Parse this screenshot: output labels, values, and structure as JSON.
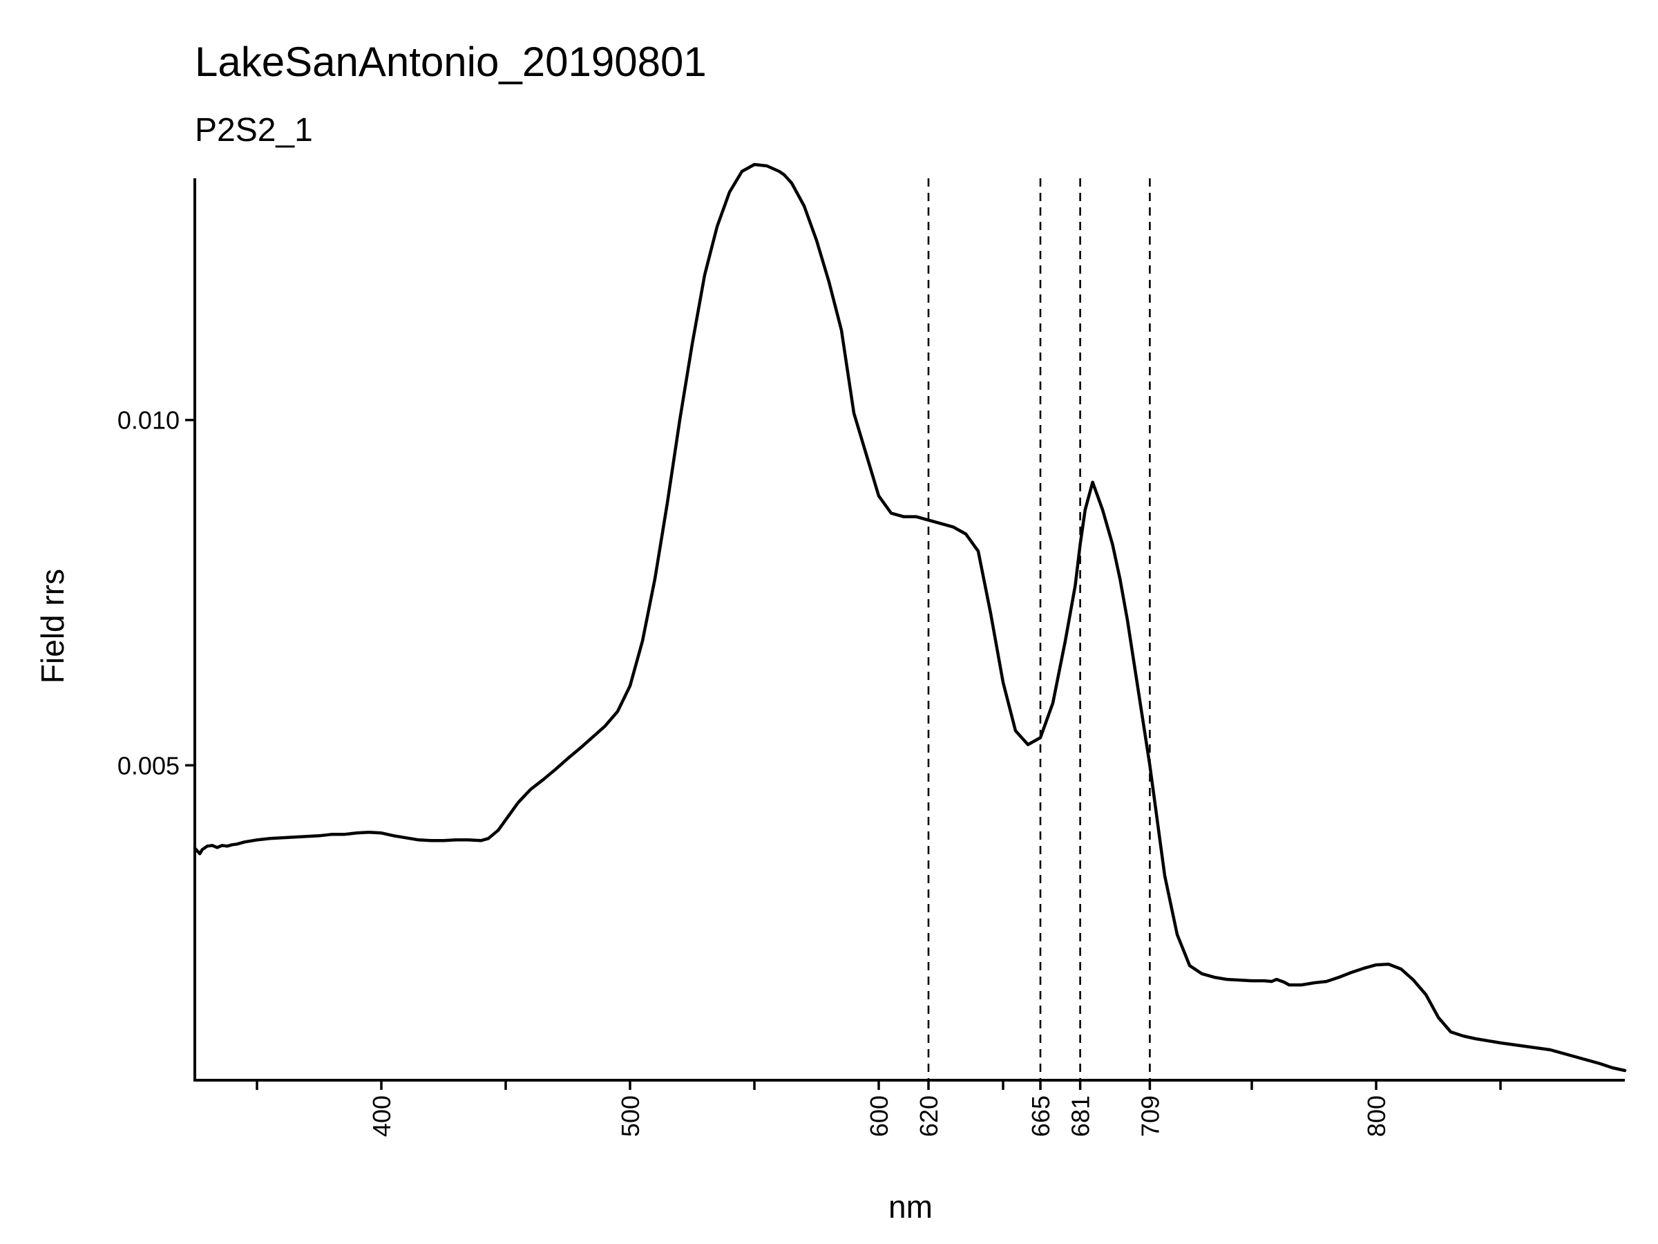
{
  "chart_data": {
    "type": "line",
    "title": "LakeSanAntonio_20190801",
    "subtitle": "P2S2_1",
    "xlabel": "nm",
    "ylabel": "Field rrs",
    "xlim": [
      325,
      900
    ],
    "ylim": [
      0.00044,
      0.0135
    ],
    "x_ticks": [
      400,
      500,
      600,
      620,
      665,
      681,
      709,
      800
    ],
    "x_minor_ticks": [
      350,
      450,
      550,
      650,
      750,
      850
    ],
    "y_ticks": [
      {
        "value": 0.005,
        "label": "0.005"
      },
      {
        "value": 0.01,
        "label": "0.010"
      }
    ],
    "vlines": [
      620,
      665,
      681,
      709
    ],
    "vline_style": "dashed",
    "grid": false,
    "line_color": "#000000",
    "series": [
      {
        "x": [
          325,
          327,
          328,
          330,
          332,
          334,
          336,
          338,
          340,
          342,
          345,
          350,
          355,
          360,
          365,
          370,
          375,
          380,
          385,
          390,
          395,
          400,
          405,
          410,
          415,
          420,
          425,
          430,
          435,
          440,
          443,
          447,
          450,
          455,
          460,
          465,
          470,
          475,
          480,
          485,
          490,
          495,
          500,
          505,
          510,
          515,
          520,
          525,
          530,
          535,
          540,
          545,
          550,
          555,
          560,
          562,
          565,
          570,
          575,
          580,
          585,
          590,
          595,
          600,
          605,
          610,
          615,
          620,
          625,
          630,
          635,
          640,
          645,
          650,
          655,
          660,
          665,
          670,
          675,
          679,
          681,
          683,
          686,
          690,
          694,
          697,
          700,
          703,
          706,
          709,
          712,
          715,
          720,
          725,
          730,
          735,
          740,
          745,
          750,
          755,
          758,
          760,
          763,
          765,
          770,
          775,
          780,
          785,
          790,
          795,
          800,
          805,
          810,
          815,
          820,
          825,
          830,
          835,
          840,
          850,
          860,
          870,
          880,
          890,
          895,
          900
        ],
        "y": [
          0.0038,
          0.00372,
          0.00378,
          0.00383,
          0.00384,
          0.00381,
          0.00384,
          0.00383,
          0.00385,
          0.00386,
          0.00389,
          0.00392,
          0.00394,
          0.00395,
          0.00396,
          0.00397,
          0.00398,
          0.004,
          0.004,
          0.00402,
          0.00403,
          0.00402,
          0.00398,
          0.00395,
          0.00392,
          0.00391,
          0.00391,
          0.00392,
          0.00392,
          0.00391,
          0.00394,
          0.00406,
          0.00421,
          0.00446,
          0.00465,
          0.00479,
          0.00494,
          0.0051,
          0.00525,
          0.00541,
          0.00557,
          0.00578,
          0.00615,
          0.0068,
          0.0077,
          0.0088,
          0.01,
          0.0111,
          0.0121,
          0.0128,
          0.0133,
          0.0136,
          0.0137,
          0.01368,
          0.0136,
          0.01355,
          0.01343,
          0.0131,
          0.0126,
          0.012,
          0.0113,
          0.0101,
          0.0095,
          0.0089,
          0.00865,
          0.0086,
          0.0086,
          0.00855,
          0.0085,
          0.00845,
          0.00835,
          0.0081,
          0.0072,
          0.0062,
          0.0055,
          0.0053,
          0.0054,
          0.0059,
          0.0068,
          0.0076,
          0.0082,
          0.0087,
          0.0091,
          0.0087,
          0.0082,
          0.0077,
          0.0071,
          0.0064,
          0.0057,
          0.005,
          0.0042,
          0.0034,
          0.00255,
          0.0021,
          0.00198,
          0.00193,
          0.0019,
          0.00189,
          0.00188,
          0.00188,
          0.00187,
          0.0019,
          0.00186,
          0.00182,
          0.00182,
          0.00185,
          0.00187,
          0.00193,
          0.002,
          0.00206,
          0.00211,
          0.00212,
          0.00205,
          0.00189,
          0.00168,
          0.00135,
          0.00114,
          0.00108,
          0.00104,
          0.00098,
          0.00093,
          0.00088,
          0.00078,
          0.00068,
          0.00062,
          0.00058
        ]
      }
    ]
  }
}
